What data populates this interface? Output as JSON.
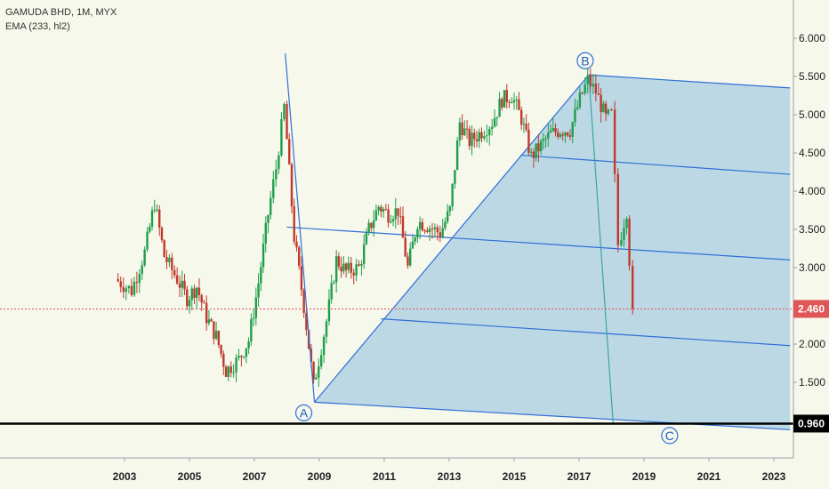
{
  "header": {
    "symbol_line": "GAMUDA BHD, 1M, MYX",
    "indicator_line": "EMA (233, hl2)"
  },
  "colors": {
    "background": "#f6f8ec",
    "up_candle": "#1e9e4a",
    "down_candle": "#c0392b",
    "pitchfork_line": "#2f6fd6",
    "pitchfork_fill": "#a9cde3",
    "support_line": "#000000",
    "last_price_line": "#e05555",
    "last_price_tag": "#e05555",
    "support_tag": "#000000",
    "teal_line": "#3aa6a0"
  },
  "chart_data": {
    "type": "candlestick",
    "title": "GAMUDA BHD, 1M, MYX",
    "indicator": "EMA (233, hl2)",
    "x_axis": {
      "ticks": [
        "2003",
        "2005",
        "2007",
        "2009",
        "2011",
        "2013",
        "2015",
        "2017",
        "2019",
        "2021",
        "2023"
      ],
      "range": [
        2001.0,
        2023.5
      ]
    },
    "y_axis": {
      "ticks": [
        "1.500",
        "2.000",
        "2.500",
        "3.000",
        "3.500",
        "4.000",
        "4.500",
        "5.000",
        "5.500",
        "6.000"
      ],
      "tick_values": [
        1.5,
        2.0,
        2.5,
        3.0,
        3.5,
        4.0,
        4.5,
        5.0,
        5.5,
        6.0
      ],
      "range": [
        0.7,
        6.5
      ],
      "side": "right"
    },
    "price_labels": [
      {
        "label": "2.460",
        "value": 2.46,
        "kind": "last"
      },
      {
        "label": "0.960",
        "value": 0.96,
        "kind": "support"
      }
    ],
    "support_level": 0.96,
    "last_price": 2.46,
    "pivot_points": [
      {
        "label": "A",
        "x": 2008.85,
        "y": 1.24
      },
      {
        "label": "B",
        "x": 2017.3,
        "y": 5.52
      },
      {
        "label": "C",
        "x": 2019.9,
        "y": 0.92
      }
    ],
    "pitchfork_lines": [
      {
        "role": "upper",
        "x1": 2017.3,
        "y1": 5.52,
        "x2": 2023.5,
        "y2": 5.35
      },
      {
        "role": "level-1",
        "x1": 2015.2,
        "y1": 4.47,
        "x2": 2023.5,
        "y2": 4.22
      },
      {
        "role": "median",
        "x1": 2008.0,
        "y1": 3.53,
        "x2": 2023.5,
        "y2": 3.1
      },
      {
        "role": "level-3",
        "x1": 2010.9,
        "y1": 2.33,
        "x2": 2023.5,
        "y2": 1.98
      },
      {
        "role": "lower",
        "x1": 2008.85,
        "y1": 1.24,
        "x2": 2023.5,
        "y2": 0.88
      }
    ],
    "zigzag": [
      {
        "x": 2007.95,
        "y": 5.8
      },
      {
        "x": 2008.85,
        "y": 1.24
      },
      {
        "x": 2017.3,
        "y": 5.52
      },
      {
        "x": 2018.05,
        "y": 0.96
      }
    ],
    "monthly_closes": [
      {
        "t": 2002.8,
        "c": 2.85
      },
      {
        "t": 2003.3,
        "c": 2.7
      },
      {
        "t": 2003.7,
        "c": 3.2
      },
      {
        "t": 2004.0,
        "c": 3.85
      },
      {
        "t": 2004.3,
        "c": 3.15
      },
      {
        "t": 2004.7,
        "c": 2.85
      },
      {
        "t": 2005.0,
        "c": 2.6
      },
      {
        "t": 2005.3,
        "c": 2.75
      },
      {
        "t": 2005.6,
        "c": 2.35
      },
      {
        "t": 2005.9,
        "c": 2.1
      },
      {
        "t": 2006.2,
        "c": 1.65
      },
      {
        "t": 2006.6,
        "c": 1.8
      },
      {
        "t": 2006.9,
        "c": 2.05
      },
      {
        "t": 2007.2,
        "c": 2.8
      },
      {
        "t": 2007.5,
        "c": 3.7
      },
      {
        "t": 2007.75,
        "c": 4.3
      },
      {
        "t": 2008.0,
        "c": 5.1
      },
      {
        "t": 2008.3,
        "c": 3.4
      },
      {
        "t": 2008.6,
        "c": 2.5
      },
      {
        "t": 2008.9,
        "c": 1.45
      },
      {
        "t": 2009.3,
        "c": 2.3
      },
      {
        "t": 2009.6,
        "c": 3.1
      },
      {
        "t": 2009.9,
        "c": 2.95
      },
      {
        "t": 2010.3,
        "c": 3.0
      },
      {
        "t": 2010.6,
        "c": 3.5
      },
      {
        "t": 2010.9,
        "c": 3.8
      },
      {
        "t": 2011.2,
        "c": 3.7
      },
      {
        "t": 2011.5,
        "c": 3.75
      },
      {
        "t": 2011.8,
        "c": 3.0
      },
      {
        "t": 2012.1,
        "c": 3.6
      },
      {
        "t": 2012.4,
        "c": 3.55
      },
      {
        "t": 2012.8,
        "c": 3.45
      },
      {
        "t": 2013.1,
        "c": 3.75
      },
      {
        "t": 2013.4,
        "c": 4.9
      },
      {
        "t": 2013.7,
        "c": 4.65
      },
      {
        "t": 2014.0,
        "c": 4.75
      },
      {
        "t": 2014.4,
        "c": 4.9
      },
      {
        "t": 2014.7,
        "c": 5.2
      },
      {
        "t": 2015.0,
        "c": 5.25
      },
      {
        "t": 2015.3,
        "c": 4.95
      },
      {
        "t": 2015.6,
        "c": 4.45
      },
      {
        "t": 2015.9,
        "c": 4.6
      },
      {
        "t": 2016.2,
        "c": 4.75
      },
      {
        "t": 2016.5,
        "c": 4.8
      },
      {
        "t": 2016.8,
        "c": 4.8
      },
      {
        "t": 2017.1,
        "c": 5.2
      },
      {
        "t": 2017.35,
        "c": 5.45
      },
      {
        "t": 2017.6,
        "c": 5.3
      },
      {
        "t": 2017.9,
        "c": 4.95
      },
      {
        "t": 2018.1,
        "c": 5.0
      },
      {
        "t": 2018.3,
        "c": 3.3
      },
      {
        "t": 2018.55,
        "c": 3.75
      },
      {
        "t": 2018.75,
        "c": 2.46
      }
    ]
  }
}
